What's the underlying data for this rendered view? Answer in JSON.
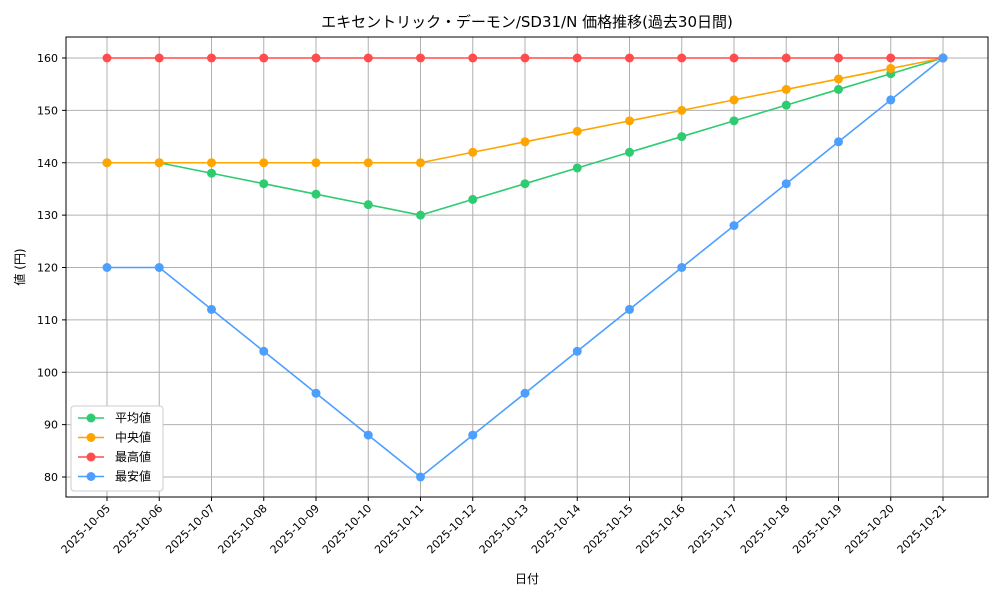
{
  "chart_data": {
    "type": "line",
    "title": "エキセントリック・デーモン/SD31/N 価格推移(過去30日間)",
    "xlabel": "日付",
    "ylabel": "値 (円)",
    "categories": [
      "2025-10-05",
      "2025-10-06",
      "2025-10-07",
      "2025-10-08",
      "2025-10-09",
      "2025-10-10",
      "2025-10-11",
      "2025-10-12",
      "2025-10-13",
      "2025-10-14",
      "2025-10-15",
      "2025-10-16",
      "2025-10-17",
      "2025-10-18",
      "2025-10-19",
      "2025-10-20",
      "2025-10-21"
    ],
    "yticks": [
      80,
      90,
      100,
      110,
      120,
      130,
      140,
      150,
      160
    ],
    "ylim": [
      76,
      164
    ],
    "grid": true,
    "legend": "lower-left",
    "series": [
      {
        "name": "平均値",
        "color": "#2ecc71",
        "values": [
          140,
          140,
          138,
          136,
          134,
          132,
          130,
          133,
          136,
          139,
          142,
          145,
          148,
          151,
          154,
          157,
          160
        ]
      },
      {
        "name": "中央値",
        "color": "#ffa500",
        "values": [
          140,
          140,
          140,
          140,
          140,
          140,
          140,
          142,
          144,
          146,
          148,
          150,
          152,
          154,
          156,
          158,
          160
        ]
      },
      {
        "name": "最高値",
        "color": "#ff4d4d",
        "values": [
          160,
          160,
          160,
          160,
          160,
          160,
          160,
          160,
          160,
          160,
          160,
          160,
          160,
          160,
          160,
          160,
          160
        ]
      },
      {
        "name": "最安値",
        "color": "#4d9fff",
        "values": [
          120,
          120,
          112,
          104,
          96,
          88,
          80,
          88,
          96,
          104,
          112,
          120,
          128,
          136,
          144,
          152,
          160
        ]
      }
    ]
  }
}
